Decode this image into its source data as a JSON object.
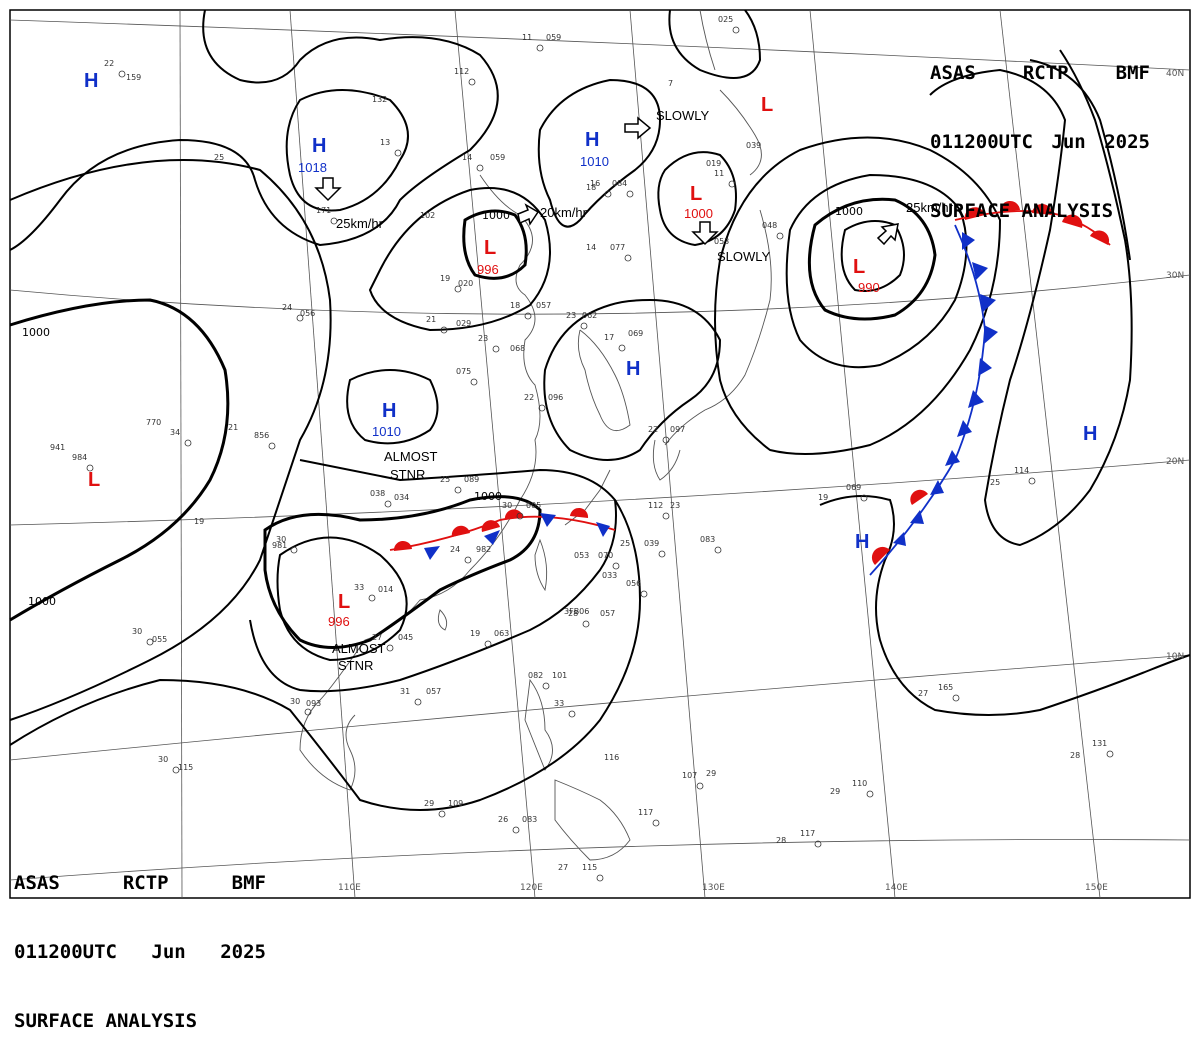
{
  "header": {
    "line1": [
      "ASAS",
      "RCTP",
      "BMF"
    ],
    "line2": [
      "011200UTC",
      "Jun",
      "2025"
    ],
    "line3": "SURFACE ANALYSIS"
  },
  "colors": {
    "high": "#1030c8",
    "low": "#e01010",
    "warm_front": "#e01010",
    "cold_front": "#1030c8",
    "isobar": "#000000",
    "coast": "#555555",
    "grid": "#555555"
  },
  "lat_labels": [
    "30N",
    "20N",
    "10N",
    "40N"
  ],
  "lon_labels": [
    "110E",
    "120E",
    "130E",
    "140E",
    "150E"
  ],
  "isobar_labels": [
    "1000",
    "1000",
    "1000",
    "1000",
    "1000"
  ],
  "systems": [
    {
      "type": "H",
      "pressure": "1018"
    },
    {
      "type": "H",
      "pressure": "1010"
    },
    {
      "type": "H",
      "pressure": "1010"
    },
    {
      "type": "L",
      "pressure": "996"
    },
    {
      "type": "L",
      "pressure": "1000"
    },
    {
      "type": "L",
      "pressure": "990"
    },
    {
      "type": "L",
      "pressure": "996"
    },
    {
      "type": "L",
      "pressure": ""
    },
    {
      "type": "L",
      "pressure": ""
    },
    {
      "type": "H",
      "pressure": ""
    },
    {
      "type": "H",
      "pressure": ""
    },
    {
      "type": "H",
      "pressure": ""
    },
    {
      "type": "H",
      "pressure": ""
    }
  ],
  "motions": [
    "25km/hr",
    "20km/hr",
    "SLOWLY",
    "SLOWLY",
    "25km/hr"
  ],
  "notes": [
    "ALMOST",
    "STNR",
    "ALMOST",
    "STNR"
  ],
  "stations": [
    "22",
    "159",
    "11",
    "059",
    "112",
    "132",
    "13",
    "25",
    "171",
    "102",
    "14",
    "059",
    "16",
    "18",
    "084",
    "019",
    "11",
    "039",
    "025",
    "7",
    "048",
    "14",
    "077",
    "053",
    "19",
    "020",
    "21",
    "029",
    "23",
    "068",
    "18",
    "057",
    "23",
    "062",
    "17",
    "069",
    "24",
    "056",
    "075",
    "21",
    "856",
    "770",
    "34",
    "941",
    "984",
    "19",
    "038",
    "034",
    "25",
    "089",
    "30",
    "005",
    "24",
    "982",
    "30",
    "981",
    "33",
    "014",
    "27",
    "045",
    "19",
    "063",
    "22",
    "096",
    "22",
    "097",
    "112",
    "23",
    "083",
    "25",
    "039",
    "053",
    "070",
    "033",
    "056",
    "3FB06",
    "28",
    "057",
    "30",
    "055",
    "31",
    "057",
    "30",
    "093",
    "30",
    "115",
    "29",
    "109",
    "26",
    "083",
    "082",
    "101",
    "33",
    "116",
    "107",
    "29",
    "117",
    "27",
    "115",
    "28",
    "117",
    "29",
    "110",
    "28",
    "131",
    "27",
    "165",
    "25",
    "114",
    "19",
    "069"
  ]
}
